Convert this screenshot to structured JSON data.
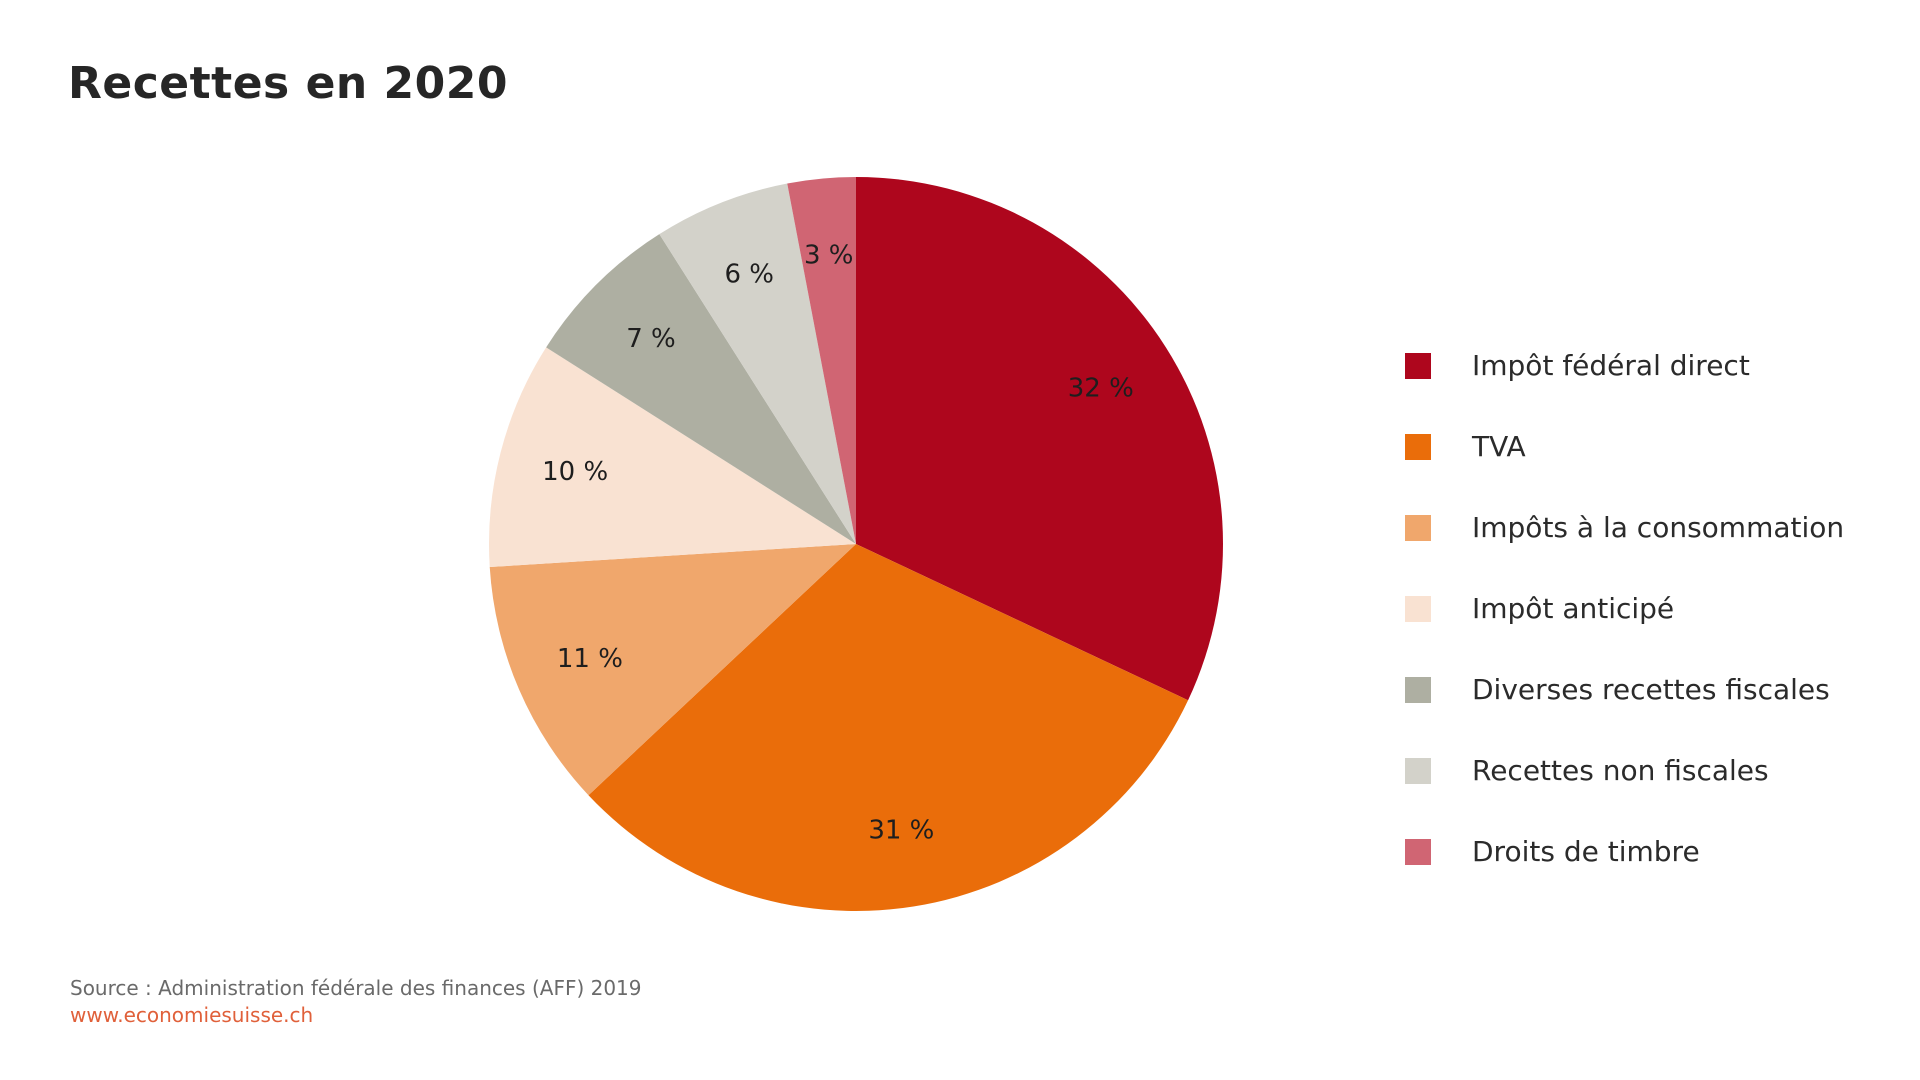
{
  "title": "Recettes en 2020",
  "footer": {
    "source": "Source : Administration fédérale des finances (AFF) 2019",
    "website": "www.economiesuisse.ch"
  },
  "chart_data": {
    "type": "pie",
    "title": "Recettes en 2020",
    "unit": "%",
    "legend_position": "right",
    "slices": [
      {
        "label": "Impôt fédéral direct",
        "value": 32,
        "display": "32 %",
        "color": "#AE061D"
      },
      {
        "label": "TVA",
        "value": 31,
        "display": "31 %",
        "color": "#EA6D0A"
      },
      {
        "label": "Impôts à la consommation",
        "value": 11,
        "display": "11 %",
        "color": "#F0A76C"
      },
      {
        "label": "Impôt anticipé",
        "value": 10,
        "display": "10 %",
        "color": "#F9E2D2"
      },
      {
        "label": "Diverses recettes fiscales",
        "value": 7,
        "display": "7 %",
        "color": "#AEAFA2"
      },
      {
        "label": "Recettes non fiscales",
        "value": 6,
        "display": "6 %",
        "color": "#D3D2CA"
      },
      {
        "label": "Droits de timbre",
        "value": 3,
        "display": "3 %",
        "color": "#D06573"
      }
    ]
  }
}
